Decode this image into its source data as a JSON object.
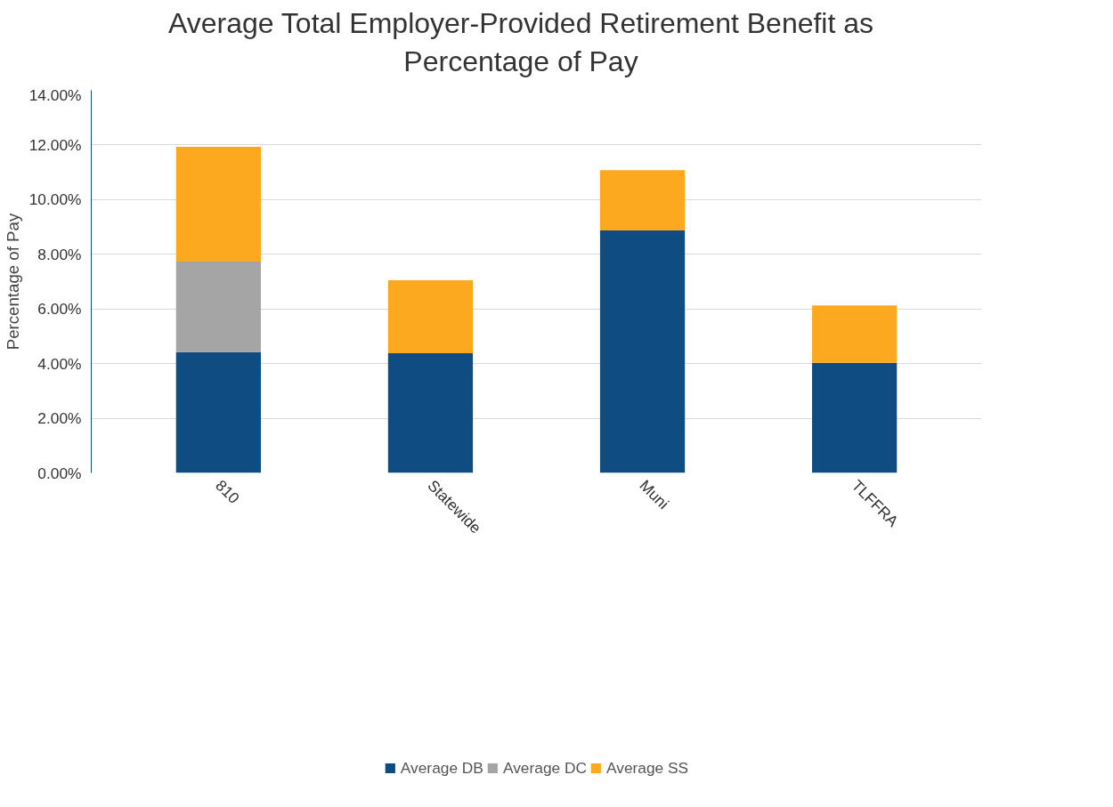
{
  "chart_data": {
    "type": "bar",
    "title": "Average Total Employer-Provided Retirement Benefit as Percentage of Pay",
    "ylabel": "Percentage of Pay",
    "categories": [
      "810",
      "Statewide",
      "Muni",
      "TLFFRA"
    ],
    "stacked": true,
    "series": [
      {
        "name": "Average DB",
        "color": "#0f4c81",
        "values": [
          4.42,
          4.38,
          8.87,
          4.03
        ]
      },
      {
        "name": "Average DC",
        "color": "#a5a5a5",
        "values": [
          3.31,
          null,
          null,
          null
        ]
      },
      {
        "name": "Average SS",
        "color": "#fca91f",
        "values": [
          4.2,
          2.67,
          2.21,
          2.1
        ]
      }
    ],
    "ylim": [
      0,
      14
    ],
    "yticks": [
      {
        "value": 0,
        "label": "0.00%"
      },
      {
        "value": 2,
        "label": "2.00%"
      },
      {
        "value": 4,
        "label": "4.00%"
      },
      {
        "value": 6,
        "label": "6.00%"
      },
      {
        "value": 8,
        "label": "8.00%"
      },
      {
        "value": 10,
        "label": "10.00%"
      },
      {
        "value": 12,
        "label": "12.00%"
      },
      {
        "value": 14,
        "label": "14.00%"
      }
    ],
    "grid": "y",
    "legend": "bottom"
  }
}
